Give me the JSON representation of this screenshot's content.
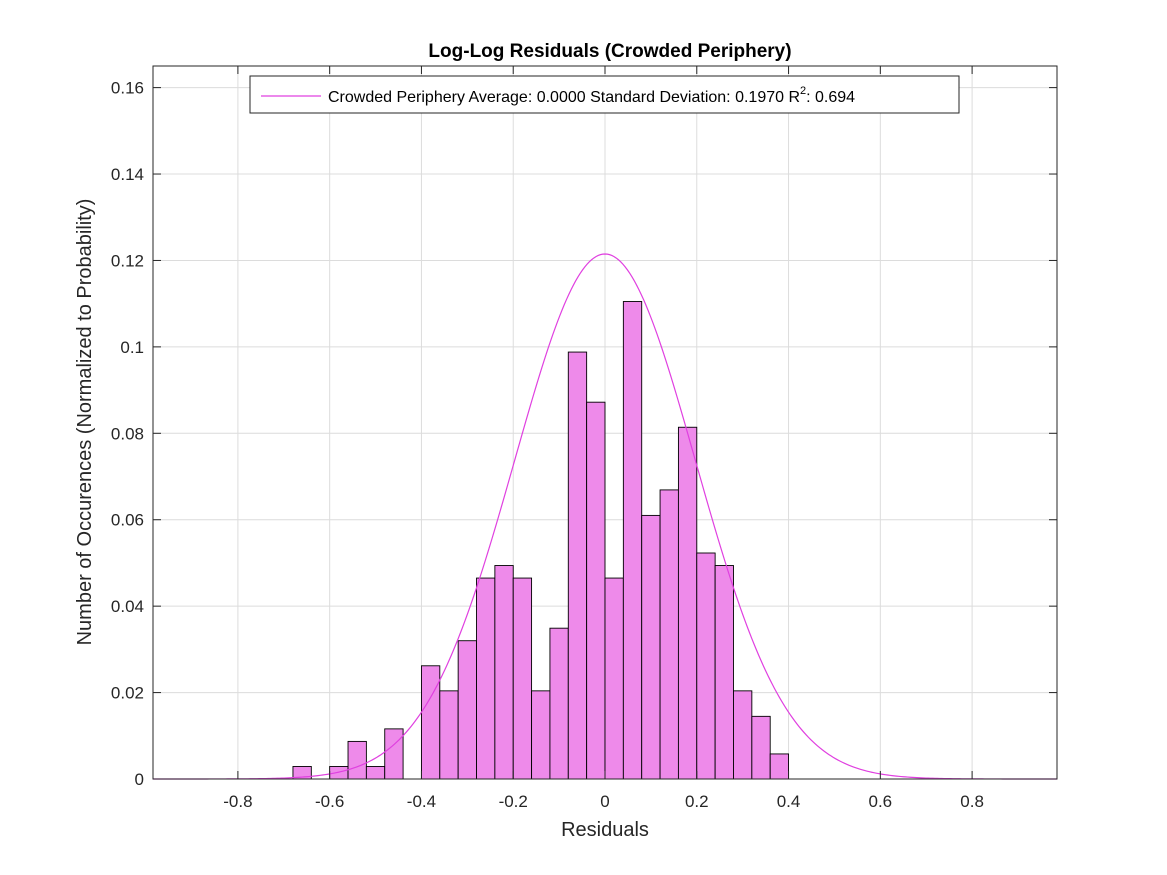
{
  "chart_data": {
    "type": "bar",
    "title": "Log-Log Residuals (Crowded Periphery)",
    "xlabel": "Residuals",
    "ylabel": "Number of Occurences (Normalized to Probability)",
    "xlim": [
      -0.985,
      0.985
    ],
    "ylim": [
      0,
      0.165
    ],
    "xticks": [
      -0.8,
      -0.6,
      -0.4,
      -0.2,
      0,
      0.2,
      0.4,
      0.6,
      0.8
    ],
    "xtick_labels": [
      "-0.8",
      "-0.6",
      "-0.4",
      "-0.2",
      "0",
      "0.2",
      "0.4",
      "0.6",
      "0.8"
    ],
    "yticks": [
      0,
      0.02,
      0.04,
      0.06,
      0.08,
      0.1,
      0.12,
      0.14,
      0.16
    ],
    "ytick_labels": [
      "0",
      "0.02",
      "0.04",
      "0.06",
      "0.08",
      "0.1",
      "0.12",
      "0.14",
      "0.16"
    ],
    "grid": true,
    "bin_width": 0.04,
    "bins": [
      {
        "left": -0.68,
        "right": -0.64,
        "value": 0.0029
      },
      {
        "left": -0.6,
        "right": -0.56,
        "value": 0.0029
      },
      {
        "left": -0.56,
        "right": -0.52,
        "value": 0.0087
      },
      {
        "left": -0.52,
        "right": -0.48,
        "value": 0.0029
      },
      {
        "left": -0.48,
        "right": -0.44,
        "value": 0.0116
      },
      {
        "left": -0.4,
        "right": -0.36,
        "value": 0.0262
      },
      {
        "left": -0.36,
        "right": -0.32,
        "value": 0.0204
      },
      {
        "left": -0.32,
        "right": -0.28,
        "value": 0.032
      },
      {
        "left": -0.28,
        "right": -0.24,
        "value": 0.0465
      },
      {
        "left": -0.24,
        "right": -0.2,
        "value": 0.0494
      },
      {
        "left": -0.2,
        "right": -0.16,
        "value": 0.0465
      },
      {
        "left": -0.16,
        "right": -0.12,
        "value": 0.0204
      },
      {
        "left": -0.12,
        "right": -0.08,
        "value": 0.0349
      },
      {
        "left": -0.08,
        "right": -0.04,
        "value": 0.0988
      },
      {
        "left": -0.04,
        "right": 0.0,
        "value": 0.0872
      },
      {
        "left": 0.0,
        "right": 0.04,
        "value": 0.0465
      },
      {
        "left": 0.04,
        "right": 0.08,
        "value": 0.1105
      },
      {
        "left": 0.08,
        "right": 0.12,
        "value": 0.061
      },
      {
        "left": 0.12,
        "right": 0.16,
        "value": 0.0669
      },
      {
        "left": 0.16,
        "right": 0.2,
        "value": 0.0814
      },
      {
        "left": 0.2,
        "right": 0.24,
        "value": 0.0523
      },
      {
        "left": 0.24,
        "right": 0.28,
        "value": 0.0494
      },
      {
        "left": 0.28,
        "right": 0.32,
        "value": 0.0204
      },
      {
        "left": 0.32,
        "right": 0.36,
        "value": 0.0145
      },
      {
        "left": 0.36,
        "right": 0.4,
        "value": 0.0058
      }
    ],
    "bar_color": "#ee8aea",
    "bar_edge_color": "#000000",
    "fit_curve": {
      "type": "normal",
      "mean": 0.0,
      "std": 0.197,
      "peak": 0.1215,
      "color": "#e040e0"
    },
    "legend": {
      "placement": "top",
      "entries": [
        {
          "text_main": "Crowded Periphery Average: 0.0000 Standard Deviation: 0.1970 R",
          "superscript": "2",
          "text_tail": ": 0.694"
        }
      ]
    }
  }
}
